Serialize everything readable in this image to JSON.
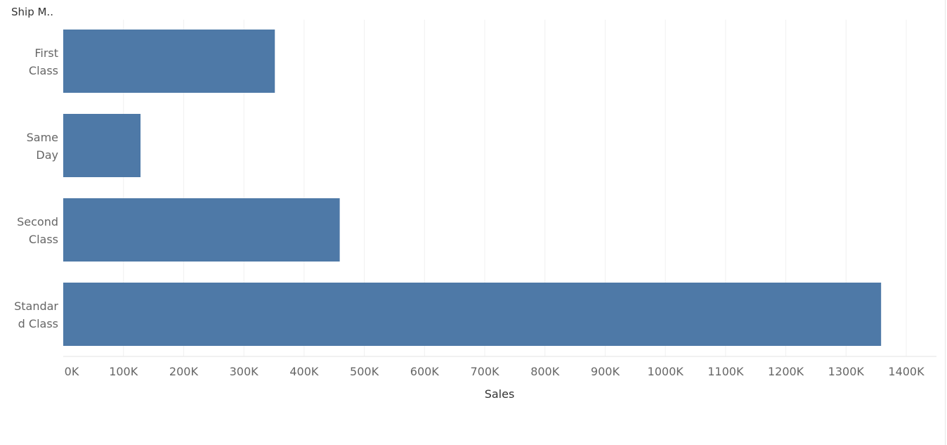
{
  "chart_data": {
    "type": "bar",
    "orientation": "horizontal",
    "row_header": "Ship M..",
    "categories": [
      {
        "line1": "First",
        "line2": "Class"
      },
      {
        "line1": "Same",
        "line2": "Day"
      },
      {
        "line1": "Second",
        "line2": "Class"
      },
      {
        "line1": "Standar",
        "line2": "d Class"
      }
    ],
    "values": [
      351428,
      128363,
      459194,
      1358216
    ],
    "xlabel": "Sales",
    "xlim": [
      0,
      1400000
    ],
    "x_ticks": [
      0,
      100000,
      200000,
      300000,
      400000,
      500000,
      600000,
      700000,
      800000,
      900000,
      1000000,
      1100000,
      1200000,
      1300000,
      1400000
    ],
    "x_tick_labels": [
      "0K",
      "100K",
      "200K",
      "300K",
      "400K",
      "500K",
      "600K",
      "700K",
      "800K",
      "900K",
      "1000K",
      "1100K",
      "1200K",
      "1300K",
      "1400K"
    ],
    "grid": "vertical",
    "bar_color": "#4e79a7",
    "grid_color": "#f0f0f0"
  }
}
